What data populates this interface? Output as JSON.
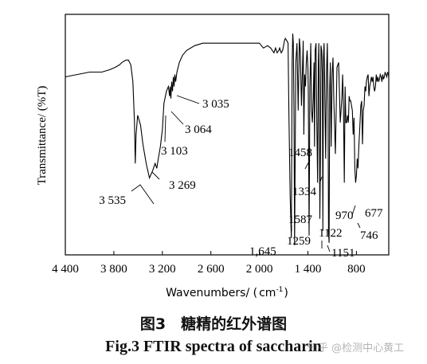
{
  "captions": {
    "chinese": "图3　糖精的红外谱图",
    "english": "Fig.3 FTIR spectra of saccharin"
  },
  "watermark": "知乎 @检测中心黄工",
  "chart_data": {
    "type": "line",
    "title": "",
    "xlabel_text": "Wavenumbers/ (",
    "xlabel_unit": "cm",
    "xlabel_exp": "-1",
    "xlabel_close": ")",
    "ylabel": "Transmittance/ (%T)",
    "xlim": [
      4400,
      400
    ],
    "x_reversed": true,
    "ylim": [
      0,
      100
    ],
    "grid": false,
    "legend": "none",
    "x_ticks": [
      {
        "value": 4400,
        "label": "4 400"
      },
      {
        "value": 3800,
        "label": "3 800"
      },
      {
        "value": 3200,
        "label": "3 200"
      },
      {
        "value": 2600,
        "label": "2 600"
      },
      {
        "value": 2000,
        "label": "2 000"
      },
      {
        "value": 1400,
        "label": "1 400"
      },
      {
        "value": 800,
        "label": "800"
      }
    ],
    "series": [
      {
        "color": "#000000",
        "x": [
          4400,
          4250,
          4100,
          3950,
          3850,
          3780,
          3730,
          3700,
          3650,
          3620,
          3590,
          3565,
          3545,
          3535,
          3525,
          3505,
          3470,
          3440,
          3400,
          3360,
          3320,
          3290,
          3269,
          3250,
          3225,
          3200,
          3180,
          3150,
          3125,
          3110,
          3103,
          3095,
          3085,
          3075,
          3064,
          3055,
          3045,
          3035,
          3020,
          2990,
          2950,
          2900,
          2800,
          2700,
          2600,
          2500,
          2400,
          2300,
          2200,
          2100,
          2050,
          2000,
          1950,
          1900,
          1860,
          1820,
          1800,
          1780,
          1760,
          1750,
          1730,
          1712,
          1690,
          1680,
          1660,
          1645,
          1635,
          1620,
          1605,
          1595,
          1587,
          1580,
          1572,
          1565,
          1550,
          1535,
          1520,
          1505,
          1495,
          1480,
          1465,
          1458,
          1450,
          1440,
          1430,
          1420,
          1410,
          1400,
          1395,
          1385,
          1375,
          1365,
          1355,
          1345,
          1334,
          1325,
          1318,
          1310,
          1300,
          1290,
          1280,
          1270,
          1265,
          1259,
          1252,
          1245,
          1238,
          1230,
          1222,
          1215,
          1208,
          1200,
          1192,
          1180,
          1170,
          1160,
          1151,
          1145,
          1138,
          1130,
          1122,
          1112,
          1100,
          1090,
          1080,
          1060,
          1040,
          1020,
          1000,
          980,
          970,
          960,
          950,
          940,
          930,
          920,
          910,
          900,
          890,
          880,
          870,
          860,
          850,
          840,
          830,
          820,
          810,
          800,
          790,
          780,
          770,
          760,
          746,
          735,
          725,
          715,
          705,
          695,
          685,
          677,
          665,
          655,
          645,
          635,
          625,
          615,
          605,
          595,
          585,
          575,
          565,
          555,
          545,
          535,
          525,
          515,
          505,
          495,
          485,
          475,
          465,
          455,
          445,
          435,
          425,
          415,
          405,
          400
        ],
        "y": [
          74,
          75,
          76,
          76,
          77,
          78,
          79,
          80,
          81,
          81,
          79,
          72,
          55,
          38,
          50,
          58,
          54,
          46,
          38,
          32,
          35,
          38,
          36,
          40,
          45,
          52,
          63,
          68,
          70,
          66,
          70,
          65,
          72,
          68,
          74,
          70,
          75,
          72,
          76,
          80,
          83,
          85,
          87,
          88,
          88,
          88,
          88,
          88,
          88,
          88,
          88,
          88,
          86,
          87,
          86,
          84,
          86,
          84,
          85,
          86,
          84,
          85,
          89,
          90,
          89,
          88,
          60,
          25,
          7,
          80,
          92,
          88,
          60,
          4,
          80,
          88,
          60,
          90,
          85,
          62,
          80,
          89,
          50,
          75,
          70,
          80,
          85,
          78,
          68,
          8,
          70,
          88,
          60,
          55,
          65,
          80,
          45,
          85,
          88,
          55,
          30,
          80,
          88,
          70,
          15,
          40,
          87,
          85,
          75,
          10,
          82,
          88,
          70,
          40,
          75,
          88,
          60,
          10,
          5,
          70,
          80,
          45,
          75,
          82,
          65,
          42,
          78,
          80,
          55,
          65,
          75,
          60,
          30,
          70,
          55,
          55,
          58,
          55,
          66,
          64,
          64,
          62,
          60,
          50,
          57,
          36,
          30,
          33,
          40,
          36,
          45,
          52,
          62,
          64,
          46,
          60,
          62,
          70,
          68,
          72,
          74,
          75,
          66,
          70,
          72,
          74,
          72,
          74,
          70,
          68,
          70,
          75,
          72,
          74,
          72,
          73,
          75,
          74,
          72,
          75,
          73,
          74,
          76,
          75,
          74,
          76,
          75,
          74
        ]
      }
    ],
    "annotations": [
      {
        "label": "3 535",
        "x": 3535
      },
      {
        "label": "3 269",
        "x": 3269
      },
      {
        "label": "3 103",
        "x": 3103
      },
      {
        "label": "3 064",
        "x": 3064
      },
      {
        "label": "3 035",
        "x": 3035
      },
      {
        "label": "1458",
        "x": 1458
      },
      {
        "label": "1334",
        "x": 1334
      },
      {
        "label": "1587",
        "x": 1587
      },
      {
        "label": "1259",
        "x": 1259
      },
      {
        "label": "1,645",
        "x": 1645
      },
      {
        "label": "970",
        "x": 970
      },
      {
        "label": "677",
        "x": 677
      },
      {
        "label": "1122",
        "x": 1122
      },
      {
        "label": "746",
        "x": 746
      },
      {
        "label": "1151",
        "x": 1151
      }
    ]
  }
}
